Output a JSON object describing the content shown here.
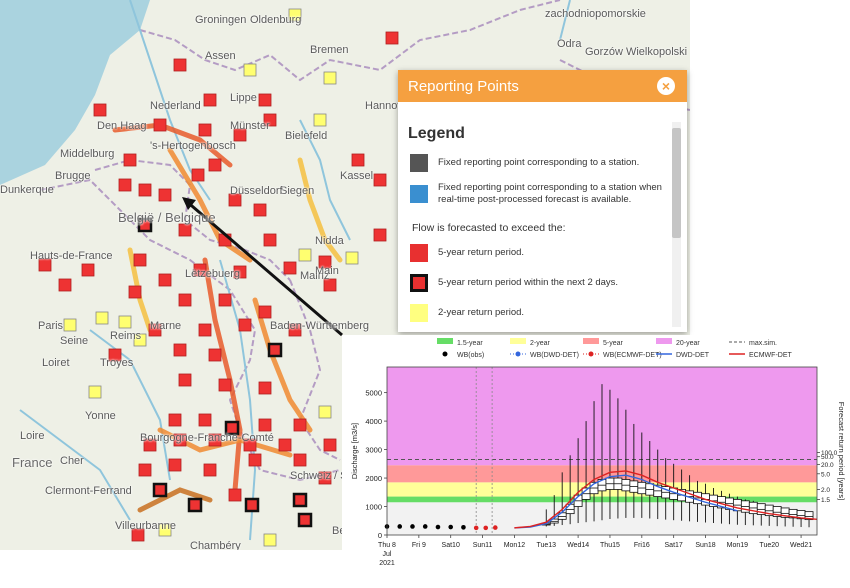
{
  "map": {
    "cities": [
      "Groningen",
      "Assen",
      "Bremen",
      "Oldenburg",
      "Den Haag",
      "Nederland",
      "Hannover",
      "Bielefeld",
      "Münster",
      "Middelburg",
      "'s-Hertogenbosch",
      "Kassel",
      "Brugge",
      "Dunkerque",
      "België / Belgique",
      "Siegen",
      "Düsseldorf",
      "Hauts-de-France",
      "Mainz",
      "Paris",
      "Reims",
      "Lëtzebuerg",
      "Baden-Württemberg",
      "Troyes",
      "Loiret",
      "Yonne",
      "Bourgogne-Franche-Comté",
      "France",
      "Clermont-Ferrand",
      "Villeurbanne",
      "Chambéry",
      "Schweiz / Suisse",
      "Gorzów Wielkopolski",
      "zachodniopomorskie",
      "Odra",
      "Lippe",
      "Nidda",
      "Main",
      "Seine",
      "Marne",
      "Loire",
      "Cher",
      "Bern"
    ]
  },
  "panel": {
    "title": "Reporting Points",
    "close_icon": "close-icon",
    "legend_title": "Legend",
    "items": [
      {
        "label": "Fixed reporting point corresponding to a station.",
        "color": "#555555"
      },
      {
        "label": "Fixed reporting point corresponding to a station when real-time post-processed forecast is available.",
        "color": "#3a8fd0"
      }
    ],
    "subtitle": "Flow is forecasted to exceed the:",
    "flow_items": [
      {
        "label": "5-year return period.",
        "color": "#e83030",
        "border": false
      },
      {
        "label": "5-year return period within the next 2 days.",
        "color": "#e83030",
        "border": true
      },
      {
        "label": "2-year return period.",
        "color": "#ffff80",
        "border": false
      }
    ]
  },
  "chart_data": {
    "type": "line",
    "ylabel": "Discharge [m3/s]",
    "ylabel_right": "Forecast return period [years]",
    "yticks": [
      0,
      1000,
      2000,
      3000,
      4000,
      5000
    ],
    "ylim": [
      0,
      5900
    ],
    "right_ticks": [
      "1.5",
      "2.0",
      "5.0",
      "20.0",
      "50.0",
      "100.0"
    ],
    "xlim": [
      0,
      13.5
    ],
    "x_ticks": [
      {
        "x": 0,
        "label": "Thu 8\nJul\n2021"
      },
      {
        "x": 1,
        "label": "Fri 9"
      },
      {
        "x": 2,
        "label": "Sat10"
      },
      {
        "x": 3,
        "label": "Sun11"
      },
      {
        "x": 4,
        "label": "Mon12"
      },
      {
        "x": 5,
        "label": "Tue13"
      },
      {
        "x": 6,
        "label": "Wed14"
      },
      {
        "x": 7,
        "label": "Thu15"
      },
      {
        "x": 8,
        "label": "Fri16"
      },
      {
        "x": 9,
        "label": "Sat17"
      },
      {
        "x": 10,
        "label": "Sun18"
      },
      {
        "x": 11,
        "label": "Mon19"
      },
      {
        "x": 12,
        "label": "Tue20"
      },
      {
        "x": 13,
        "label": "Wed21"
      }
    ],
    "bands": [
      {
        "name": "1.5-year",
        "from": 1150,
        "to": 1350,
        "color": "#66dd66"
      },
      {
        "name": "2-year",
        "from": 1350,
        "to": 1850,
        "color": "#ffff99"
      },
      {
        "name": "5-year",
        "from": 1850,
        "to": 2450,
        "color": "#ff9999"
      },
      {
        "name": "20-year",
        "from": 2450,
        "to": 5900,
        "color": "#ee99ee"
      }
    ],
    "max_sim": {
      "name": "max.sim.",
      "value": 2650
    },
    "legend": [
      {
        "name": "1.5-year",
        "kind": "band",
        "color": "#66dd66"
      },
      {
        "name": "2-year",
        "kind": "band",
        "color": "#ffff99"
      },
      {
        "name": "5-year",
        "kind": "band",
        "color": "#ff9999"
      },
      {
        "name": "20-year",
        "kind": "band",
        "color": "#ee99ee"
      },
      {
        "name": "max.sim.",
        "kind": "dash",
        "color": "#555555"
      },
      {
        "name": "WB(obs)",
        "kind": "dot",
        "color": "#000000"
      },
      {
        "name": "WB(DWD-DET)",
        "kind": "dotline",
        "color": "#3366dd"
      },
      {
        "name": "WB(ECMWF-DET)",
        "kind": "dotline",
        "color": "#dd2222"
      },
      {
        "name": "DWD-DET",
        "kind": "line",
        "color": "#3366dd"
      },
      {
        "name": "ECMWF-DET",
        "kind": "line",
        "color": "#dd2222"
      }
    ],
    "vlines": [
      2.8,
      3.3
    ],
    "wb_obs": {
      "x": [
        0,
        0.4,
        0.8,
        1.2,
        1.6,
        2.0,
        2.4
      ],
      "y": [
        300,
        300,
        300,
        300,
        280,
        280,
        270
      ]
    },
    "wb_ecmwf": {
      "x": [
        2.8,
        3.1,
        3.4
      ],
      "y": [
        250,
        250,
        260
      ]
    },
    "ecmwf_det": {
      "x": [
        4,
        4.5,
        5,
        5.5,
        6,
        6.5,
        7,
        7.5,
        8,
        8.5,
        9,
        10,
        11,
        12,
        13,
        13.5
      ],
      "y": [
        250,
        300,
        450,
        900,
        1500,
        1950,
        2200,
        2250,
        2100,
        1850,
        1650,
        1250,
        950,
        750,
        600,
        550
      ]
    },
    "dwd_det": {
      "x": [
        4,
        4.5,
        5,
        5.5,
        6,
        6.5,
        7,
        7.5,
        8,
        8.5,
        9,
        10,
        11
      ],
      "y": [
        250,
        280,
        400,
        800,
        1350,
        1800,
        2050,
        2100,
        1950,
        1700,
        1500,
        1150,
        850
      ]
    },
    "ensemble": {
      "x": [
        5.0,
        5.25,
        5.5,
        5.75,
        6.0,
        6.25,
        6.5,
        6.75,
        7.0,
        7.25,
        7.5,
        7.75,
        8.0,
        8.25,
        8.5,
        8.75,
        9.0,
        9.25,
        9.5,
        9.75,
        10.0,
        10.25,
        10.5,
        10.75,
        11.0,
        11.25,
        11.5,
        11.75,
        12.0,
        12.25,
        12.5,
        12.75,
        13.0,
        13.25
      ],
      "low": [
        300,
        320,
        350,
        380,
        420,
        450,
        480,
        520,
        560,
        580,
        600,
        600,
        600,
        580,
        560,
        540,
        520,
        500,
        480,
        460,
        440,
        420,
        400,
        380,
        360,
        350,
        340,
        330,
        320,
        310,
        300,
        290,
        280,
        270
      ],
      "q1": [
        350,
        420,
        550,
        750,
        1000,
        1250,
        1450,
        1550,
        1600,
        1600,
        1550,
        1500,
        1450,
        1400,
        1350,
        1300,
        1250,
        1200,
        1150,
        1100,
        1050,
        1000,
        950,
        900,
        850,
        800,
        750,
        720,
        680,
        650,
        620,
        600,
        570,
        540
      ],
      "med": [
        380,
        480,
        650,
        900,
        1200,
        1450,
        1650,
        1750,
        1800,
        1800,
        1750,
        1700,
        1650,
        1600,
        1550,
        1500,
        1450,
        1400,
        1350,
        1300,
        1250,
        1200,
        1150,
        1100,
        1050,
        1000,
        950,
        900,
        850,
        800,
        760,
        720,
        680,
        650
      ],
      "q3": [
        420,
        560,
        780,
        1080,
        1400,
        1650,
        1850,
        1950,
        2000,
        2000,
        1950,
        1900,
        1850,
        1800,
        1750,
        1700,
        1650,
        1600,
        1550,
        1500,
        1450,
        1400,
        1350,
        1300,
        1250,
        1200,
        1150,
        1100,
        1050,
        1000,
        950,
        900,
        860,
        820
      ],
      "high": [
        900,
        1400,
        2200,
        2800,
        3400,
        4000,
        4700,
        5300,
        5100,
        4800,
        4400,
        3900,
        3600,
        3300,
        3000,
        2700,
        2500,
        2300,
        2100,
        1900,
        1800,
        1650,
        1550,
        1450,
        1350,
        1250,
        1200,
        1100,
        1050,
        1000,
        950,
        900,
        850,
        800
      ]
    }
  }
}
